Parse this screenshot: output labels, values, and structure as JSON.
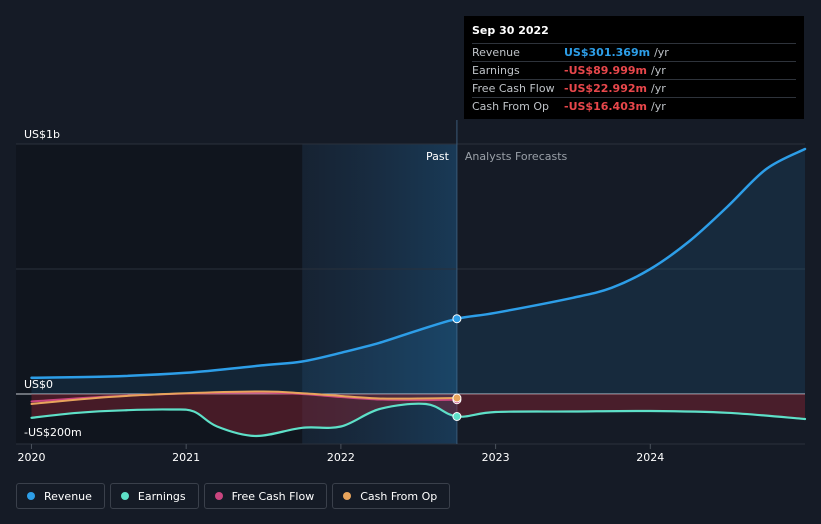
{
  "tooltip": {
    "date": "Sep 30 2022",
    "rows": [
      {
        "label": "Revenue",
        "value": "US$301.369m",
        "unit": "/yr",
        "color": "#2d9ee8"
      },
      {
        "label": "Earnings",
        "value": "-US$89.999m",
        "unit": "/yr",
        "color": "#e8474b"
      },
      {
        "label": "Free Cash Flow",
        "value": "-US$22.992m",
        "unit": "/yr",
        "color": "#e8474b"
      },
      {
        "label": "Cash From Op",
        "value": "-US$16.403m",
        "unit": "/yr",
        "color": "#e8474b"
      }
    ]
  },
  "labels": {
    "past": "Past",
    "forecast": "Analysts Forecasts"
  },
  "legend": [
    {
      "label": "Revenue",
      "color": "#2d9ee8"
    },
    {
      "label": "Earnings",
      "color": "#5ee0c8"
    },
    {
      "label": "Free Cash Flow",
      "color": "#c9457f"
    },
    {
      "label": "Cash From Op",
      "color": "#e8a45c"
    }
  ],
  "chart_data": {
    "type": "line",
    "x_ticks": [
      "2020",
      "2021",
      "2022",
      "2023",
      "2024"
    ],
    "y_ticks": [
      {
        "value": 1000,
        "label": "US$1b"
      },
      {
        "value": 0,
        "label": "US$0"
      },
      {
        "value": -200,
        "label": "-US$200m"
      }
    ],
    "ylim": [
      -200,
      1000
    ],
    "xlim": [
      2019.9,
      2025.0
    ],
    "past_until": 2022.75,
    "series": [
      {
        "name": "Revenue",
        "color": "#2d9ee8",
        "points": [
          [
            2020.0,
            65
          ],
          [
            2020.5,
            70
          ],
          [
            2021.0,
            85
          ],
          [
            2021.5,
            115
          ],
          [
            2021.75,
            130
          ],
          [
            2022.0,
            165
          ],
          [
            2022.25,
            205
          ],
          [
            2022.5,
            255
          ],
          [
            2022.75,
            301
          ],
          [
            2023.0,
            325
          ],
          [
            2023.5,
            385
          ],
          [
            2023.75,
            425
          ],
          [
            2024.0,
            500
          ],
          [
            2024.25,
            610
          ],
          [
            2024.5,
            750
          ],
          [
            2024.75,
            900
          ],
          [
            2025.0,
            980
          ]
        ]
      },
      {
        "name": "Earnings",
        "color": "#5ee0c8",
        "points": [
          [
            2020.0,
            -95
          ],
          [
            2020.3,
            -75
          ],
          [
            2020.6,
            -65
          ],
          [
            2020.9,
            -62
          ],
          [
            2021.05,
            -70
          ],
          [
            2021.2,
            -130
          ],
          [
            2021.45,
            -168
          ],
          [
            2021.75,
            -135
          ],
          [
            2022.0,
            -130
          ],
          [
            2022.25,
            -60
          ],
          [
            2022.55,
            -40
          ],
          [
            2022.75,
            -90
          ],
          [
            2023.0,
            -72
          ],
          [
            2023.5,
            -70
          ],
          [
            2024.0,
            -68
          ],
          [
            2024.5,
            -75
          ],
          [
            2025.0,
            -100
          ]
        ]
      },
      {
        "name": "Free Cash Flow",
        "color": "#c9457f",
        "points": [
          [
            2020.0,
            -30
          ],
          [
            2020.5,
            -10
          ],
          [
            2021.0,
            2
          ],
          [
            2021.5,
            5
          ],
          [
            2021.75,
            0
          ],
          [
            2022.0,
            -12
          ],
          [
            2022.25,
            -22
          ],
          [
            2022.5,
            -24
          ],
          [
            2022.75,
            -23
          ]
        ]
      },
      {
        "name": "Cash From Op",
        "color": "#e8a45c",
        "points": [
          [
            2020.0,
            -40
          ],
          [
            2020.5,
            -12
          ],
          [
            2021.0,
            3
          ],
          [
            2021.5,
            10
          ],
          [
            2021.75,
            3
          ],
          [
            2022.0,
            -8
          ],
          [
            2022.25,
            -18
          ],
          [
            2022.5,
            -18
          ],
          [
            2022.75,
            -16
          ]
        ]
      }
    ]
  }
}
